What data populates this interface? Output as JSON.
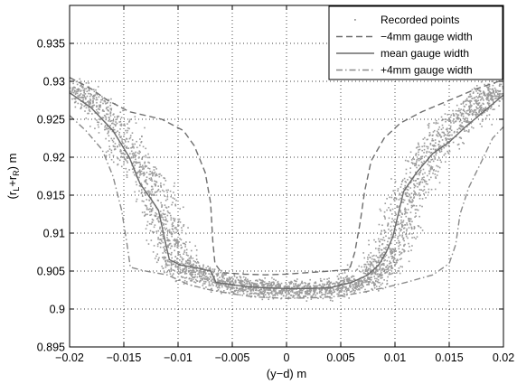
{
  "chart_data": {
    "type": "scatter",
    "xlabel": "(y−d) m",
    "ylabel_parts": {
      "main": "(r",
      "sub1": "L",
      "plus": "+r",
      "sub2": "R",
      "tail": ") m"
    },
    "xlim": [
      -0.02,
      0.02
    ],
    "ylim": [
      0.895,
      0.94
    ],
    "xticks": [
      -0.02,
      -0.015,
      -0.01,
      -0.005,
      0,
      0.005,
      0.01,
      0.015,
      0.02
    ],
    "xtick_labels": [
      "−0.02",
      "−0.015",
      "−0.01",
      "−0.005",
      "0",
      "0.005",
      "0.01",
      "0.015",
      "0.02"
    ],
    "yticks": [
      0.895,
      0.9,
      0.905,
      0.91,
      0.915,
      0.92,
      0.925,
      0.93,
      0.935
    ],
    "ytick_labels": [
      "0.895",
      "0.9",
      "0.905",
      "0.91",
      "0.915",
      "0.92",
      "0.925",
      "0.93",
      "0.935"
    ],
    "grid": true,
    "legend_position": "top-right",
    "legend": [
      {
        "label": "Recorded points",
        "style": "dots"
      },
      {
        "label": "−4mm gauge width",
        "style": "dashed"
      },
      {
        "label": "mean gauge width",
        "style": "solid"
      },
      {
        "label": "+4mm gauge width",
        "style": "dashdot"
      }
    ],
    "scatter_band": {
      "name": "Recorded points",
      "color": "#9a9a9a",
      "center": [
        [
          -0.02,
          0.9295
        ],
        [
          -0.018,
          0.9275
        ],
        [
          -0.016,
          0.9245
        ],
        [
          -0.0145,
          0.9205
        ],
        [
          -0.0125,
          0.9165
        ],
        [
          -0.0115,
          0.912
        ],
        [
          -0.0105,
          0.908
        ],
        [
          -0.0095,
          0.9055
        ],
        [
          -0.008,
          0.9045
        ],
        [
          -0.006,
          0.9035
        ],
        [
          -0.004,
          0.903
        ],
        [
          -0.002,
          0.9027
        ],
        [
          0,
          0.9025
        ],
        [
          0.002,
          0.9025
        ],
        [
          0.004,
          0.9027
        ],
        [
          0.006,
          0.9032
        ],
        [
          0.0075,
          0.904
        ],
        [
          0.0085,
          0.9055
        ],
        [
          0.0095,
          0.908
        ],
        [
          0.0105,
          0.9115
        ],
        [
          0.0115,
          0.916
        ],
        [
          0.013,
          0.92
        ],
        [
          0.015,
          0.9235
        ],
        [
          0.017,
          0.926
        ],
        [
          0.0185,
          0.928
        ],
        [
          0.02,
          0.929
        ]
      ],
      "half_width_x": 0.0028,
      "half_width_y": 0.0018
    },
    "series": [
      {
        "name": "−4mm gauge width",
        "style": "dashed",
        "color": "#6e6e6e",
        "points": [
          [
            -0.02,
            0.9305
          ],
          [
            -0.018,
            0.929
          ],
          [
            -0.0165,
            0.9275
          ],
          [
            -0.0145,
            0.926
          ],
          [
            -0.0115,
            0.925
          ],
          [
            -0.0095,
            0.9235
          ],
          [
            -0.0085,
            0.9215
          ],
          [
            -0.0075,
            0.918
          ],
          [
            -0.007,
            0.914
          ],
          [
            -0.0068,
            0.909
          ],
          [
            -0.0066,
            0.906
          ],
          [
            -0.006,
            0.9048
          ],
          [
            -0.004,
            0.9046
          ],
          [
            -0.002,
            0.9045
          ],
          [
            0,
            0.9046
          ],
          [
            0.002,
            0.9048
          ],
          [
            0.004,
            0.905
          ],
          [
            0.0058,
            0.9052
          ],
          [
            0.0063,
            0.9075
          ],
          [
            0.0068,
            0.9115
          ],
          [
            0.0072,
            0.9155
          ],
          [
            0.0078,
            0.9195
          ],
          [
            0.009,
            0.9225
          ],
          [
            0.0105,
            0.9245
          ],
          [
            0.0125,
            0.926
          ],
          [
            0.015,
            0.9275
          ],
          [
            0.0175,
            0.929
          ],
          [
            0.02,
            0.9302
          ]
        ]
      },
      {
        "name": "mean gauge width",
        "style": "solid",
        "color": "#6a6a6a",
        "points": [
          [
            -0.02,
            0.9285
          ],
          [
            -0.018,
            0.9265
          ],
          [
            -0.016,
            0.9235
          ],
          [
            -0.0145,
            0.92
          ],
          [
            -0.0135,
            0.9165
          ],
          [
            -0.0125,
            0.9145
          ],
          [
            -0.0118,
            0.913
          ],
          [
            -0.0112,
            0.909
          ],
          [
            -0.0108,
            0.9065
          ],
          [
            -0.0098,
            0.9058
          ],
          [
            -0.0085,
            0.9055
          ],
          [
            -0.007,
            0.905
          ],
          [
            -0.0065,
            0.9035
          ],
          [
            -0.005,
            0.9032
          ],
          [
            -0.004,
            0.903
          ],
          [
            -0.002,
            0.9028
          ],
          [
            0,
            0.9027
          ],
          [
            0.002,
            0.9027
          ],
          [
            0.004,
            0.9028
          ],
          [
            0.006,
            0.9035
          ],
          [
            0.0075,
            0.9045
          ],
          [
            0.0085,
            0.9058
          ],
          [
            0.0092,
            0.9075
          ],
          [
            0.0098,
            0.9095
          ],
          [
            0.0108,
            0.9155
          ],
          [
            0.012,
            0.918
          ],
          [
            0.0135,
            0.9205
          ],
          [
            0.015,
            0.922
          ],
          [
            0.0165,
            0.924
          ],
          [
            0.018,
            0.9258
          ],
          [
            0.02,
            0.9282
          ]
        ]
      },
      {
        "name": "+4mm gauge width",
        "style": "dashdot",
        "color": "#8a8a8a",
        "points": [
          [
            -0.02,
            0.9255
          ],
          [
            -0.0185,
            0.9235
          ],
          [
            -0.017,
            0.921
          ],
          [
            -0.016,
            0.9175
          ],
          [
            -0.0152,
            0.913
          ],
          [
            -0.0147,
            0.9085
          ],
          [
            -0.0144,
            0.9055
          ],
          [
            -0.013,
            0.905
          ],
          [
            -0.011,
            0.9045
          ],
          [
            -0.009,
            0.9032
          ],
          [
            -0.007,
            0.9025
          ],
          [
            -0.005,
            0.902
          ],
          [
            -0.003,
            0.9016
          ],
          [
            0,
            0.9014
          ],
          [
            0.003,
            0.9015
          ],
          [
            0.005,
            0.9017
          ],
          [
            0.007,
            0.9022
          ],
          [
            0.009,
            0.9028
          ],
          [
            0.011,
            0.9035
          ],
          [
            0.0135,
            0.9045
          ],
          [
            0.015,
            0.906
          ],
          [
            0.0156,
            0.9085
          ],
          [
            0.016,
            0.9125
          ],
          [
            0.0168,
            0.916
          ],
          [
            0.018,
            0.9195
          ],
          [
            0.019,
            0.9225
          ],
          [
            0.02,
            0.924
          ]
        ]
      }
    ]
  }
}
